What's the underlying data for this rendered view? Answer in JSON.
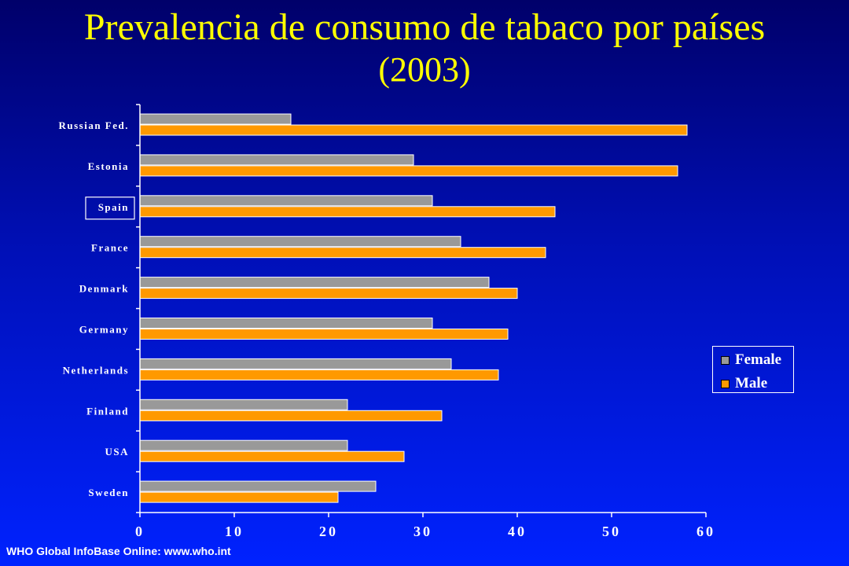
{
  "page": {
    "title": "Prevalencia de consumo de tabaco por países",
    "subtitle": "(2003)",
    "footer": "WHO Global InfoBase Online: www.who.int"
  },
  "colors": {
    "background_top": "#00006a",
    "background_bottom": "#0022ff",
    "title": "#ffff00",
    "female": "#999999",
    "male": "#ff9900",
    "text": "#ffffff"
  },
  "chart_data": {
    "type": "bar",
    "orientation": "horizontal",
    "categories": [
      "Russian Fed.",
      "Estonia",
      "Spain",
      "France",
      "Denmark",
      "Germany",
      "Netherlands",
      "Finland",
      "USA",
      "Sweden"
    ],
    "highlighted_category": "Spain",
    "series": [
      {
        "name": "Female",
        "color": "#999999",
        "values": [
          16,
          29,
          31,
          34,
          37,
          31,
          33,
          22,
          22,
          25
        ]
      },
      {
        "name": "Male",
        "color": "#ff9900",
        "values": [
          58,
          57,
          44,
          43,
          40,
          39,
          38,
          32,
          28,
          21
        ]
      }
    ],
    "xlim": [
      0,
      60
    ],
    "xticks": [
      0,
      10,
      20,
      30,
      40,
      50,
      60
    ],
    "xlabel": "",
    "ylabel": "",
    "grid": false,
    "legend": {
      "placement": "right",
      "entries": [
        "Female",
        "Male"
      ]
    }
  }
}
